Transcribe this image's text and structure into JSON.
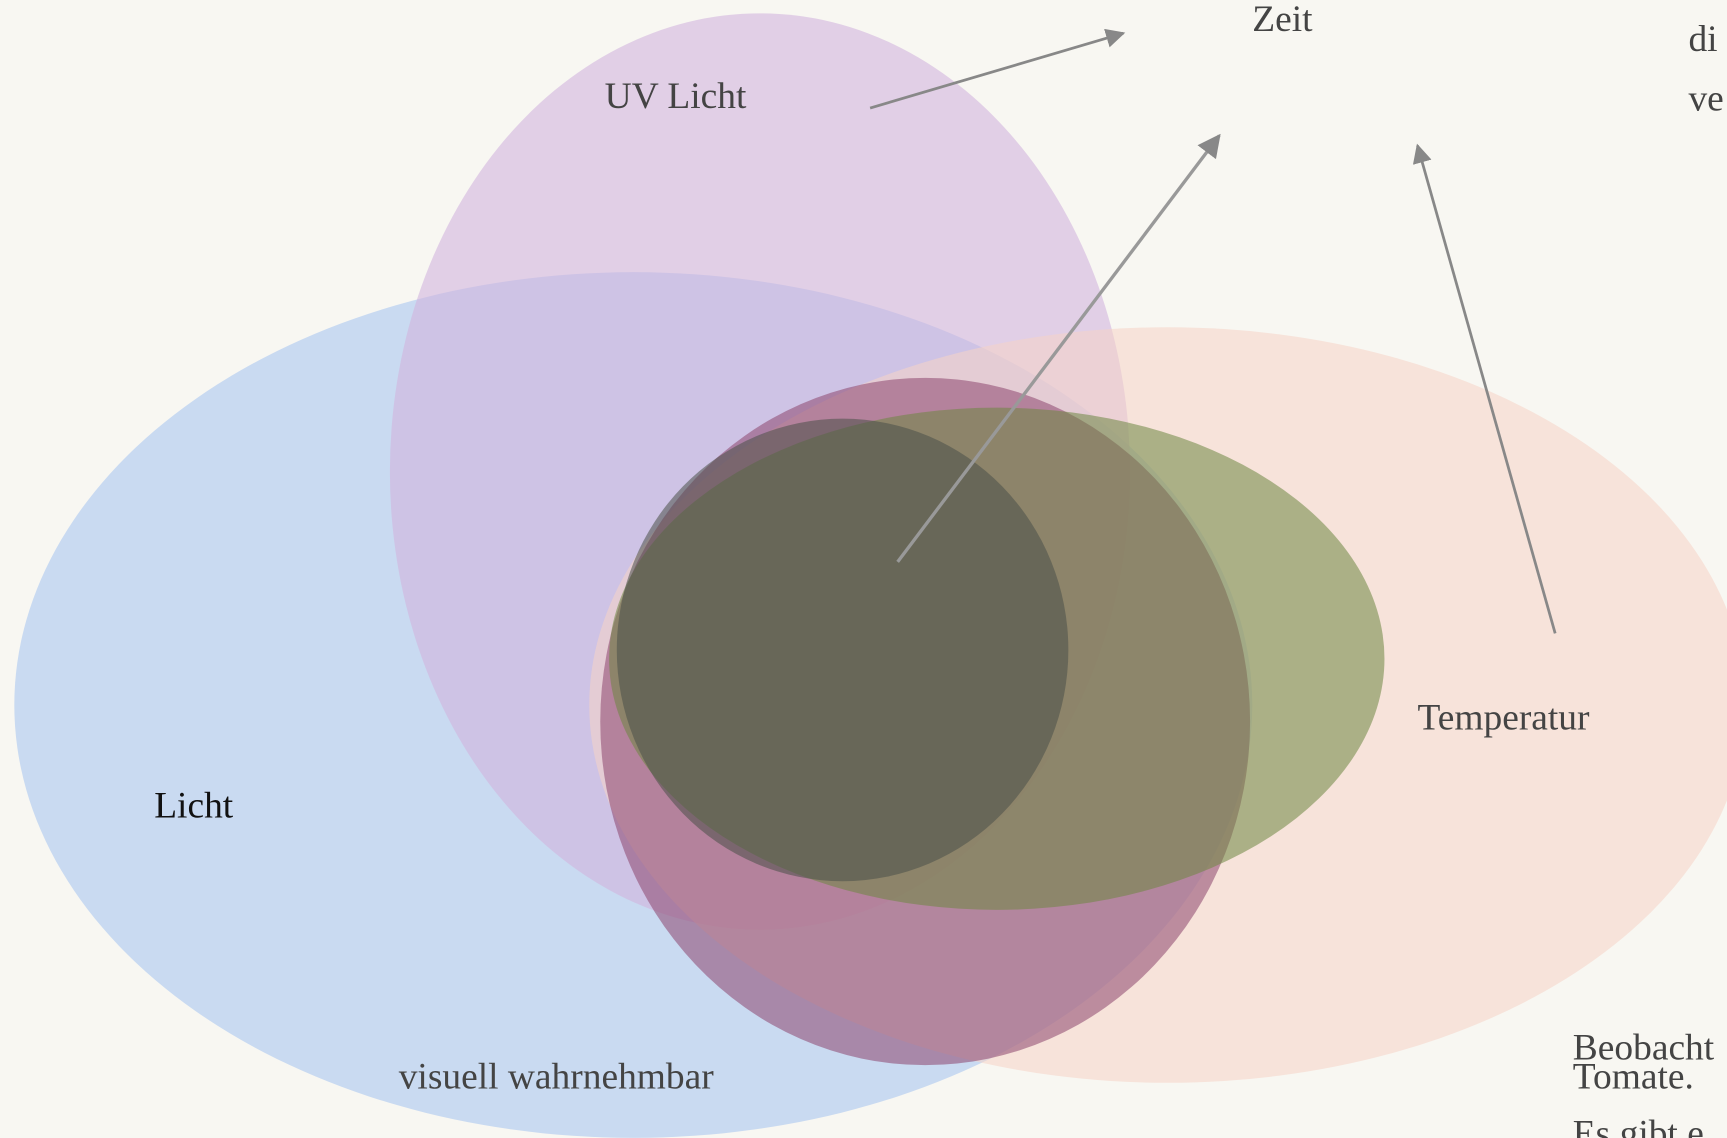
{
  "labels": [
    "Zeit",
    "UV Licht",
    "Licht",
    "Temperatur",
    "visuell wahrnehmbar"
  ],
  "side_text": [
    "di",
    "ve",
    "Beobacht",
    "Tomate.",
    "Es gibt e"
  ]
}
